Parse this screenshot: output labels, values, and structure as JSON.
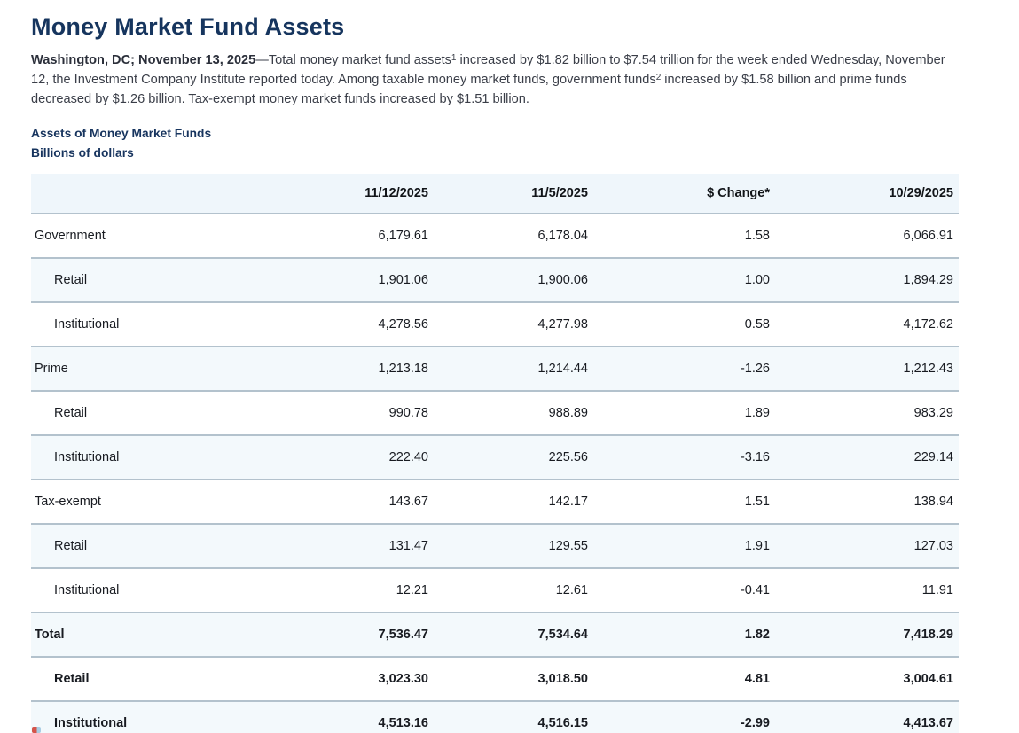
{
  "page": {
    "title": "Money Market Fund Assets",
    "intro": {
      "dateline": "Washington, DC; November 13, 2025",
      "dash": "—",
      "seg1": "Total money market fund assets",
      "sup1": "1",
      "seg2": " increased by $1.82 billion to $7.54 trillion for the week ended Wednesday, November 12, the Investment Company Institute reported today. Among taxable money market funds, government funds",
      "sup2": "2",
      "seg3": " increased by $1.58 billion and prime funds decreased by $1.26 billion. Tax-exempt money market funds increased by $1.51 billion."
    },
    "table_title": "Assets of Money Market Funds",
    "table_subtitle": "Billions of dollars"
  },
  "table": {
    "columns": [
      "",
      "11/12/2025",
      "11/5/2025",
      "$ Change*",
      "10/29/2025"
    ],
    "rows": [
      {
        "label": "Government",
        "indent": false,
        "bold": false,
        "values": [
          "6,179.61",
          "6,178.04",
          "1.58",
          "6,066.91"
        ]
      },
      {
        "label": "Retail",
        "indent": true,
        "bold": false,
        "values": [
          "1,901.06",
          "1,900.06",
          "1.00",
          "1,894.29"
        ]
      },
      {
        "label": "Institutional",
        "indent": true,
        "bold": false,
        "values": [
          "4,278.56",
          "4,277.98",
          "0.58",
          "4,172.62"
        ]
      },
      {
        "label": "Prime",
        "indent": false,
        "bold": false,
        "values": [
          "1,213.18",
          "1,214.44",
          "-1.26",
          "1,212.43"
        ]
      },
      {
        "label": "Retail",
        "indent": true,
        "bold": false,
        "values": [
          "990.78",
          "988.89",
          "1.89",
          "983.29"
        ]
      },
      {
        "label": "Institutional",
        "indent": true,
        "bold": false,
        "values": [
          "222.40",
          "225.56",
          "-3.16",
          "229.14"
        ]
      },
      {
        "label": "Tax-exempt",
        "indent": false,
        "bold": false,
        "values": [
          "143.67",
          "142.17",
          "1.51",
          "138.94"
        ]
      },
      {
        "label": "Retail",
        "indent": true,
        "bold": false,
        "values": [
          "131.47",
          "129.55",
          "1.91",
          "127.03"
        ]
      },
      {
        "label": "Institutional",
        "indent": true,
        "bold": false,
        "values": [
          "12.21",
          "12.61",
          "-0.41",
          "11.91"
        ]
      },
      {
        "label": "Total",
        "indent": false,
        "bold": true,
        "values": [
          "7,536.47",
          "7,534.64",
          "1.82",
          "7,418.29"
        ]
      },
      {
        "label": "Retail",
        "indent": true,
        "bold": true,
        "values": [
          "3,023.30",
          "3,018.50",
          "4.81",
          "3,004.61"
        ]
      },
      {
        "label": "Institutional",
        "indent": true,
        "bold": true,
        "values": [
          "4,513.16",
          "4,516.15",
          "-2.99",
          "4,413.67"
        ]
      }
    ]
  },
  "colors": {
    "heading_navy": "#16355e",
    "row_stripe": "#f3f9fc",
    "header_bg": "#eff6fb",
    "row_border": "#b3c2cd"
  }
}
